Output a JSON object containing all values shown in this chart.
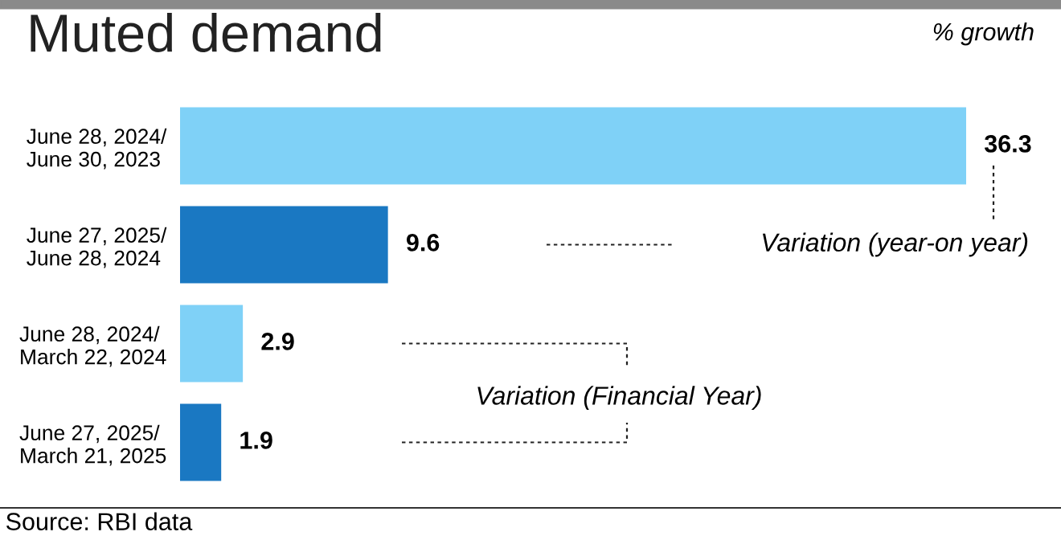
{
  "chart_data": {
    "type": "bar",
    "orientation": "horizontal",
    "title": "Muted demand",
    "subtitle": "% growth",
    "categories": [
      "June 28, 2024/\nJune 30, 2023",
      "June 27, 2025/\nJune 28, 2024",
      "June 28, 2024/\nMarch 22, 2024",
      "June 27, 2025/\nMarch 21, 2025"
    ],
    "values": [
      36.3,
      9.6,
      2.9,
      1.9
    ],
    "colors": [
      "#7fd1f7",
      "#1a78c2",
      "#7fd1f7",
      "#1a78c2"
    ],
    "data_labels": true,
    "annotations": [
      "Variation (year-on year)",
      "Variation (Financial Year)",
      "Source: RBI data"
    ]
  }
}
